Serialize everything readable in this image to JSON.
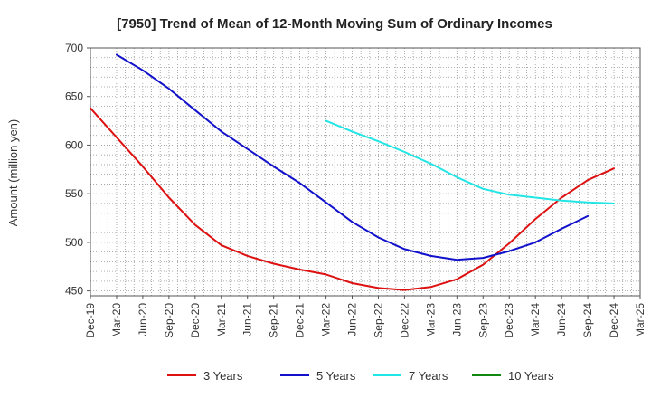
{
  "chart_data": {
    "type": "line",
    "title": "[7950]  Trend of Mean of 12-Month Moving Sum of Ordinary Incomes",
    "xlabel": "",
    "ylabel": "Amount (million yen)",
    "ylim": [
      445,
      700
    ],
    "yticks": [
      450,
      500,
      550,
      600,
      650,
      700
    ],
    "grid": true,
    "legend_position": "bottom",
    "x_tick_labels": [
      "Dec-19",
      "Mar-20",
      "Jun-20",
      "Sep-20",
      "Dec-20",
      "Mar-21",
      "Jun-21",
      "Sep-21",
      "Dec-21",
      "Mar-22",
      "Jun-22",
      "Sep-22",
      "Dec-22",
      "Mar-23",
      "Jun-23",
      "Sep-23",
      "Dec-23",
      "Mar-24",
      "Jun-24",
      "Sep-24",
      "Dec-24",
      "Mar-25"
    ],
    "series": [
      {
        "name": "3 Years",
        "color": "#dd1111",
        "start_index": 0,
        "values": [
          638,
          608,
          578,
          546,
          518,
          497,
          486,
          478,
          472,
          467,
          458,
          453,
          451,
          454,
          462,
          477,
          499,
          524,
          546,
          564,
          576
        ]
      },
      {
        "name": "5 Years",
        "color": "#1111cc",
        "start_index": 1,
        "values": [
          693,
          677,
          658,
          636,
          614,
          596,
          578,
          561,
          541,
          521,
          505,
          493,
          486,
          482,
          484,
          491,
          500,
          514,
          527
        ]
      },
      {
        "name": "7 Years",
        "color": "#22e5e5",
        "start_index": 9,
        "values": [
          625,
          614,
          604,
          593,
          581,
          567,
          555,
          549,
          546,
          543,
          541,
          540
        ]
      },
      {
        "name": "10 Years",
        "color": "#118811",
        "start_index": 0,
        "values": []
      }
    ]
  }
}
